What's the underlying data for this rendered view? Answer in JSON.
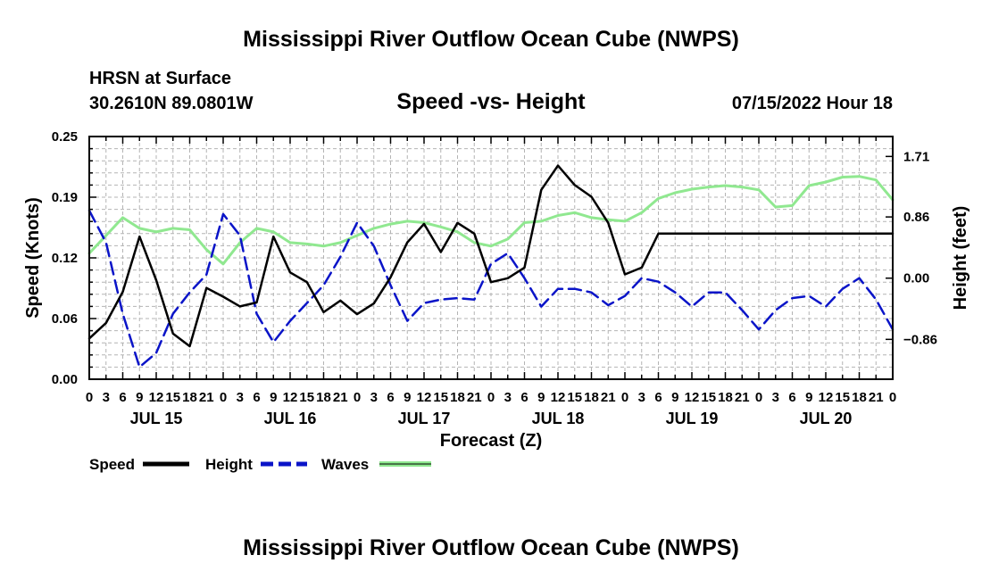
{
  "header": {
    "title": "Mississippi River Outflow Ocean Cube (NWPS)",
    "station": "HRSN at Surface",
    "coords": "30.2610N  89.0801W",
    "chart_title": "Speed -vs- Height",
    "run_time": "07/15/2022 Hour 18"
  },
  "footer": {
    "title": "Mississippi River Outflow Ocean Cube (NWPS)"
  },
  "colors": {
    "speed": "#000000",
    "height": "#0a14c8",
    "waves": "#90e890",
    "grid": "#b4b4b4"
  },
  "chart_data": {
    "type": "line",
    "title": "Speed -vs- Height",
    "xlabel": "Forecast (Z)",
    "ylabel_left": "Speed (Knots)",
    "ylabel_right": "Height (feet)",
    "x_unit": "hours from 0Z Jul 15",
    "xlim": [
      0,
      144
    ],
    "ylim_left": [
      0,
      0.25
    ],
    "ylim_right": [
      -1.42,
      1.99
    ],
    "left_ticks": [
      "0.00",
      "0.06",
      "0.12",
      "0.19",
      "0.25"
    ],
    "right_ticks": [
      {
        "value": -0.86,
        "label": "−0.86"
      },
      {
        "value": 0.0,
        "label": "0.00"
      },
      {
        "value": 0.86,
        "label": "0.86"
      },
      {
        "value": 1.71,
        "label": "1.71"
      }
    ],
    "hour_labels": [
      "0",
      "3",
      "6",
      "9",
      "12",
      "15",
      "18",
      "21",
      "0",
      "3",
      "6",
      "9",
      "12",
      "15",
      "18",
      "21",
      "0",
      "3",
      "6",
      "9",
      "12",
      "15",
      "18",
      "21",
      "0",
      "3",
      "6",
      "9",
      "12",
      "15",
      "18",
      "21",
      "0",
      "3",
      "6",
      "9",
      "12",
      "15",
      "18",
      "21",
      "0",
      "3",
      "6",
      "9",
      "12",
      "15",
      "18",
      "21",
      "0"
    ],
    "day_labels": [
      "JUL 15",
      "JUL 16",
      "JUL 17",
      "JUL 18",
      "JUL 19",
      "JUL 20"
    ],
    "legend": [
      "Speed",
      "Height",
      "Waves"
    ],
    "series": [
      {
        "name": "Speed",
        "axis": "left",
        "style": "solid",
        "points": [
          [
            0,
            0.042
          ],
          [
            3,
            0.058
          ],
          [
            6,
            0.09
          ],
          [
            9,
            0.147
          ],
          [
            12,
            0.102
          ],
          [
            15,
            0.047
          ],
          [
            18,
            0.034
          ],
          [
            21,
            0.094
          ],
          [
            24,
            0.085
          ],
          [
            27,
            0.075
          ],
          [
            30,
            0.079
          ],
          [
            33,
            0.147
          ],
          [
            36,
            0.11
          ],
          [
            39,
            0.1
          ],
          [
            42,
            0.069
          ],
          [
            45,
            0.081
          ],
          [
            48,
            0.067
          ],
          [
            51,
            0.078
          ],
          [
            54,
            0.105
          ],
          [
            57,
            0.141
          ],
          [
            60,
            0.16
          ],
          [
            63,
            0.131
          ],
          [
            66,
            0.161
          ],
          [
            69,
            0.15
          ],
          [
            72,
            0.1
          ],
          [
            75,
            0.104
          ],
          [
            78,
            0.115
          ],
          [
            81,
            0.195
          ],
          [
            84,
            0.22
          ],
          [
            87,
            0.2
          ],
          [
            90,
            0.188
          ],
          [
            93,
            0.161
          ],
          [
            96,
            0.108
          ],
          [
            99,
            0.115
          ],
          [
            102,
            0.15
          ],
          [
            144,
            0.15
          ]
        ]
      },
      {
        "name": "Height",
        "axis": "right",
        "style": "dashed",
        "points": [
          [
            0,
            0.95
          ],
          [
            3,
            0.5
          ],
          [
            6,
            -0.5
          ],
          [
            9,
            -1.25
          ],
          [
            12,
            -1.05
          ],
          [
            15,
            -0.5
          ],
          [
            18,
            -0.2
          ],
          [
            21,
            0.05
          ],
          [
            24,
            0.9
          ],
          [
            27,
            0.6
          ],
          [
            30,
            -0.5
          ],
          [
            33,
            -0.9
          ],
          [
            36,
            -0.6
          ],
          [
            39,
            -0.35
          ],
          [
            42,
            -0.1
          ],
          [
            45,
            0.3
          ],
          [
            48,
            0.78
          ],
          [
            51,
            0.45
          ],
          [
            54,
            -0.1
          ],
          [
            57,
            -0.6
          ],
          [
            60,
            -0.35
          ],
          [
            63,
            -0.3
          ],
          [
            66,
            -0.28
          ],
          [
            69,
            -0.3
          ],
          [
            72,
            0.2
          ],
          [
            75,
            0.35
          ],
          [
            78,
            0.0
          ],
          [
            81,
            -0.4
          ],
          [
            84,
            -0.15
          ],
          [
            87,
            -0.15
          ],
          [
            90,
            -0.2
          ],
          [
            93,
            -0.38
          ],
          [
            96,
            -0.25
          ],
          [
            99,
            0.0
          ],
          [
            102,
            -0.05
          ],
          [
            105,
            -0.2
          ],
          [
            108,
            -0.4
          ],
          [
            111,
            -0.2
          ],
          [
            114,
            -0.2
          ],
          [
            117,
            -0.45
          ],
          [
            120,
            -0.72
          ],
          [
            123,
            -0.45
          ],
          [
            126,
            -0.28
          ],
          [
            129,
            -0.25
          ],
          [
            132,
            -0.4
          ],
          [
            135,
            -0.15
          ],
          [
            138,
            0.0
          ],
          [
            141,
            -0.3
          ],
          [
            144,
            -0.72
          ]
        ]
      },
      {
        "name": "Waves",
        "axis": "right",
        "style": "solid",
        "points": [
          [
            0,
            0.35
          ],
          [
            3,
            0.6
          ],
          [
            6,
            0.85
          ],
          [
            9,
            0.7
          ],
          [
            12,
            0.65
          ],
          [
            15,
            0.7
          ],
          [
            18,
            0.68
          ],
          [
            21,
            0.4
          ],
          [
            24,
            0.2
          ],
          [
            27,
            0.5
          ],
          [
            30,
            0.7
          ],
          [
            33,
            0.65
          ],
          [
            36,
            0.5
          ],
          [
            39,
            0.48
          ],
          [
            42,
            0.45
          ],
          [
            45,
            0.5
          ],
          [
            48,
            0.6
          ],
          [
            51,
            0.7
          ],
          [
            54,
            0.76
          ],
          [
            57,
            0.8
          ],
          [
            60,
            0.78
          ],
          [
            63,
            0.72
          ],
          [
            66,
            0.65
          ],
          [
            69,
            0.5
          ],
          [
            72,
            0.45
          ],
          [
            75,
            0.55
          ],
          [
            78,
            0.78
          ],
          [
            81,
            0.8
          ],
          [
            84,
            0.88
          ],
          [
            87,
            0.92
          ],
          [
            90,
            0.85
          ],
          [
            93,
            0.82
          ],
          [
            96,
            0.8
          ],
          [
            99,
            0.92
          ],
          [
            102,
            1.12
          ],
          [
            105,
            1.2
          ],
          [
            108,
            1.25
          ],
          [
            111,
            1.28
          ],
          [
            114,
            1.3
          ],
          [
            117,
            1.28
          ],
          [
            120,
            1.24
          ],
          [
            123,
            1.0
          ],
          [
            126,
            1.02
          ],
          [
            129,
            1.3
          ],
          [
            132,
            1.35
          ],
          [
            135,
            1.42
          ],
          [
            138,
            1.43
          ],
          [
            141,
            1.38
          ],
          [
            144,
            1.1
          ]
        ]
      }
    ]
  }
}
